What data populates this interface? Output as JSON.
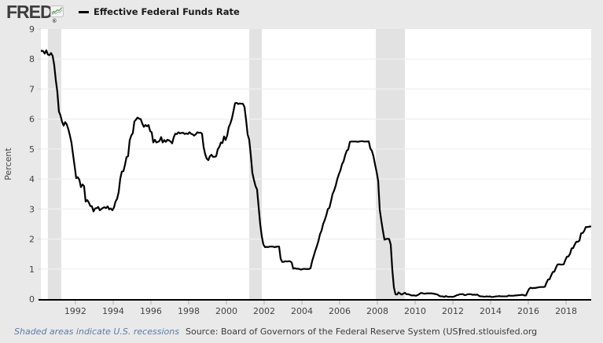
{
  "header": {
    "logo_text": "FRED",
    "logo_registered": "®",
    "series_title": "Effective Federal Funds Rate"
  },
  "footer": {
    "recession_note": "Shaded areas indicate U.S. recessions",
    "source": "Source: Board of Governors of the Federal Reserve System (US)",
    "site": "fred.stlouisfed.org"
  },
  "colors": {
    "page_background": "#e9e9e9",
    "plot_background": "#ffffff",
    "recession_band": "#e2e2e2",
    "gridline": "#f0f0f0",
    "axis_line": "#000000",
    "x_tick": "#a9bccd",
    "y_tick": "#cdd5dd",
    "tick_label": "#444444",
    "line": "#000000",
    "logo_green": "#5f9e3e",
    "link_blue": "#5b7ca9"
  },
  "chart_data": {
    "type": "line",
    "title": "Effective Federal Funds Rate",
    "xlabel": "",
    "ylabel": "Percent",
    "ylim": [
      0,
      9
    ],
    "x_domain": [
      1990.17,
      2019.33
    ],
    "y_ticks": [
      0,
      1,
      2,
      3,
      4,
      5,
      6,
      7,
      8,
      9
    ],
    "x_ticks": [
      1992,
      1994,
      1996,
      1998,
      2000,
      2002,
      2004,
      2006,
      2008,
      2010,
      2012,
      2014,
      2016,
      2018
    ],
    "grid": "horizontal",
    "legend_position": "top-header",
    "recessions": [
      [
        1990.54,
        1991.25
      ],
      [
        2001.21,
        2001.88
      ],
      [
        2007.92,
        2009.46
      ]
    ],
    "series": [
      {
        "name": "Effective Federal Funds Rate",
        "units": "Percent",
        "frequency": "monthly",
        "start_year": 1990,
        "values_by_year": [
          [
            8.23,
            8.24,
            8.28,
            8.26,
            8.18,
            8.29,
            8.15,
            8.13,
            8.2,
            8.11,
            7.81,
            7.31
          ],
          [
            6.91,
            6.25,
            6.12,
            5.91,
            5.78,
            5.9,
            5.82,
            5.66,
            5.45,
            5.21,
            4.81,
            4.43
          ],
          [
            4.03,
            4.06,
            3.98,
            3.73,
            3.82,
            3.76,
            3.25,
            3.3,
            3.22,
            3.1,
            3.09,
            2.92
          ],
          [
            3.02,
            3.03,
            3.07,
            2.96,
            3.0,
            3.04,
            3.06,
            3.03,
            3.09,
            2.99,
            3.02,
            2.96
          ],
          [
            3.05,
            3.25,
            3.34,
            3.56,
            4.01,
            4.25,
            4.26,
            4.47,
            4.73,
            4.76,
            5.29,
            5.45
          ],
          [
            5.53,
            5.92,
            5.98,
            6.05,
            6.01,
            6.0,
            5.85,
            5.74,
            5.8,
            5.76,
            5.8,
            5.6
          ],
          [
            5.56,
            5.22,
            5.31,
            5.22,
            5.24,
            5.27,
            5.4,
            5.22,
            5.3,
            5.24,
            5.31,
            5.29
          ],
          [
            5.25,
            5.19,
            5.39,
            5.51,
            5.5,
            5.56,
            5.52,
            5.54,
            5.54,
            5.5,
            5.52,
            5.5
          ],
          [
            5.56,
            5.51,
            5.49,
            5.45,
            5.49,
            5.56,
            5.54,
            5.55,
            5.51,
            5.07,
            4.83,
            4.68
          ],
          [
            4.63,
            4.76,
            4.81,
            4.74,
            4.74,
            4.76,
            4.99,
            5.07,
            5.22,
            5.2,
            5.42,
            5.3
          ],
          [
            5.45,
            5.73,
            5.85,
            6.02,
            6.27,
            6.53,
            6.54,
            6.5,
            6.52,
            6.51,
            6.51,
            6.4
          ],
          [
            5.98,
            5.49,
            5.31,
            4.8,
            4.21,
            3.97,
            3.77,
            3.65,
            3.07,
            2.49,
            2.09,
            1.82
          ],
          [
            1.73,
            1.74,
            1.73,
            1.75,
            1.75,
            1.75,
            1.73,
            1.74,
            1.75,
            1.75,
            1.34,
            1.24
          ],
          [
            1.24,
            1.26,
            1.25,
            1.26,
            1.26,
            1.22,
            1.01,
            1.03,
            1.01,
            1.01,
            1.0,
            0.98
          ],
          [
            1.0,
            1.01,
            1.0,
            1.0,
            1.0,
            1.03,
            1.26,
            1.43,
            1.61,
            1.76,
            1.93,
            2.16
          ],
          [
            2.28,
            2.5,
            2.63,
            2.79,
            3.0,
            3.04,
            3.26,
            3.5,
            3.62,
            3.78,
            4.0,
            4.16
          ],
          [
            4.29,
            4.49,
            4.59,
            4.79,
            4.94,
            4.99,
            5.24,
            5.25,
            5.25,
            5.25,
            5.25,
            5.24
          ],
          [
            5.25,
            5.26,
            5.26,
            5.25,
            5.25,
            5.25,
            5.26,
            5.02,
            4.94,
            4.76,
            4.49,
            4.24
          ],
          [
            3.94,
            2.98,
            2.61,
            2.28,
            1.98,
            2.0,
            2.01,
            2.0,
            1.81,
            0.97,
            0.39,
            0.16
          ],
          [
            0.15,
            0.22,
            0.18,
            0.15,
            0.18,
            0.21,
            0.16,
            0.16,
            0.15,
            0.12,
            0.12,
            0.12
          ],
          [
            0.11,
            0.13,
            0.16,
            0.2,
            0.2,
            0.18,
            0.18,
            0.19,
            0.19,
            0.19,
            0.19,
            0.18
          ],
          [
            0.17,
            0.16,
            0.14,
            0.1,
            0.09,
            0.09,
            0.07,
            0.1,
            0.08,
            0.07,
            0.08,
            0.07
          ],
          [
            0.08,
            0.1,
            0.13,
            0.14,
            0.16,
            0.16,
            0.16,
            0.13,
            0.14,
            0.16,
            0.16,
            0.16
          ],
          [
            0.14,
            0.15,
            0.14,
            0.15,
            0.11,
            0.09,
            0.09,
            0.08,
            0.08,
            0.09,
            0.08,
            0.09
          ],
          [
            0.07,
            0.07,
            0.08,
            0.09,
            0.09,
            0.1,
            0.09,
            0.09,
            0.09,
            0.09,
            0.09,
            0.12
          ],
          [
            0.11,
            0.11,
            0.11,
            0.12,
            0.12,
            0.13,
            0.13,
            0.14,
            0.14,
            0.12,
            0.12,
            0.24
          ],
          [
            0.34,
            0.38,
            0.36,
            0.37,
            0.37,
            0.38,
            0.39,
            0.4,
            0.4,
            0.4,
            0.41,
            0.54
          ],
          [
            0.65,
            0.66,
            0.79,
            0.9,
            0.91,
            1.04,
            1.15,
            1.16,
            1.15,
            1.15,
            1.16,
            1.3
          ],
          [
            1.41,
            1.42,
            1.51,
            1.69,
            1.7,
            1.82,
            1.91,
            1.91,
            1.95,
            2.19,
            2.2,
            2.27
          ],
          [
            2.4,
            2.4,
            2.41,
            2.42
          ]
        ]
      }
    ]
  }
}
